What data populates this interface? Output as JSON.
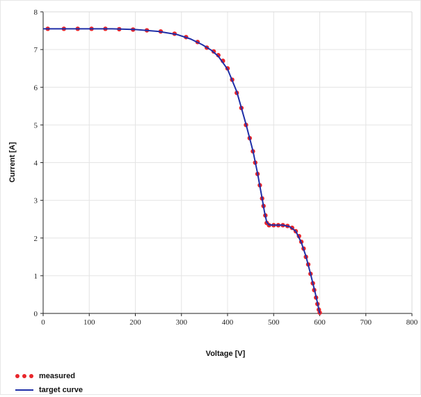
{
  "chart_data": {
    "type": "line",
    "xlabel": "Voltage [V]",
    "ylabel": "Current [A]",
    "xlim": [
      0,
      800
    ],
    "ylim": [
      0,
      8
    ],
    "xticks": [
      0,
      100,
      200,
      300,
      400,
      500,
      600,
      700,
      800
    ],
    "yticks": [
      0,
      1,
      2,
      3,
      4,
      5,
      6,
      7,
      8
    ],
    "grid": true,
    "legend_position": "bottom-left",
    "series": [
      {
        "name": "measured",
        "style": "markers",
        "color": "#e8262b",
        "x": [
          10,
          45,
          75,
          105,
          135,
          165,
          195,
          225,
          255,
          285,
          310,
          335,
          355,
          370,
          380,
          390,
          400,
          410,
          420,
          430,
          440,
          448,
          455,
          460,
          465,
          470,
          475,
          478,
          482,
          485,
          490,
          500,
          510,
          520,
          530,
          540,
          548,
          555,
          560,
          565,
          570,
          575,
          580,
          585,
          588,
          592,
          595,
          598,
          600
        ],
        "y": [
          7.55,
          7.55,
          7.55,
          7.55,
          7.55,
          7.54,
          7.53,
          7.51,
          7.48,
          7.42,
          7.33,
          7.2,
          7.05,
          6.95,
          6.85,
          6.7,
          6.5,
          6.2,
          5.85,
          5.45,
          5.0,
          4.65,
          4.3,
          4.0,
          3.7,
          3.4,
          3.05,
          2.85,
          2.6,
          2.4,
          2.34,
          2.34,
          2.34,
          2.34,
          2.32,
          2.27,
          2.18,
          2.05,
          1.9,
          1.72,
          1.5,
          1.3,
          1.05,
          0.8,
          0.62,
          0.42,
          0.25,
          0.1,
          0.02
        ]
      },
      {
        "name": "target curve",
        "style": "line",
        "color": "#1f2fa8",
        "x": [
          0,
          50,
          100,
          150,
          200,
          250,
          290,
          320,
          345,
          365,
          380,
          400,
          420,
          440,
          455,
          465,
          475,
          480,
          485,
          490,
          500,
          520,
          535,
          548,
          560,
          570,
          580,
          590,
          595,
          600
        ],
        "y": [
          7.55,
          7.55,
          7.55,
          7.55,
          7.53,
          7.48,
          7.4,
          7.28,
          7.13,
          6.98,
          6.82,
          6.48,
          5.88,
          5.02,
          4.32,
          3.72,
          3.05,
          2.7,
          2.42,
          2.35,
          2.34,
          2.34,
          2.3,
          2.18,
          1.88,
          1.52,
          1.05,
          0.55,
          0.28,
          0.0
        ]
      }
    ]
  }
}
